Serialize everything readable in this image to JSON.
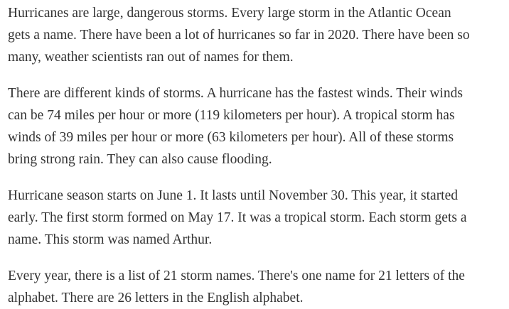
{
  "article": {
    "paragraphs": [
      {
        "lines": [
          "Hurricanes are large, dangerous storms. Every large storm in the Atlantic Ocean",
          "gets a name. There have been a lot of hurricanes so far in 2020. There have been so",
          "many, weather scientists ran out of names for them."
        ]
      },
      {
        "lines": [
          "There are different kinds of storms. A hurricane has the fastest winds. Their winds",
          "can be 74 miles per hour or more (119 kilometers per hour). A tropical storm has",
          "winds of 39 miles per hour or more (63 kilometers per hour). All of these storms",
          "bring strong rain. They can also cause flooding."
        ]
      },
      {
        "lines": [
          "Hurricane season starts on June 1. It lasts until November 30. This year, it started",
          "early. The first storm formed on May 17. It was a tropical storm. Each storm gets a",
          "name. This storm was named Arthur."
        ]
      },
      {
        "lines": [
          "Every year, there is a list of 21 storm names. There's one name for 21 letters of the",
          "alphabet. There are 26 letters in the English alphabet."
        ]
      }
    ]
  }
}
